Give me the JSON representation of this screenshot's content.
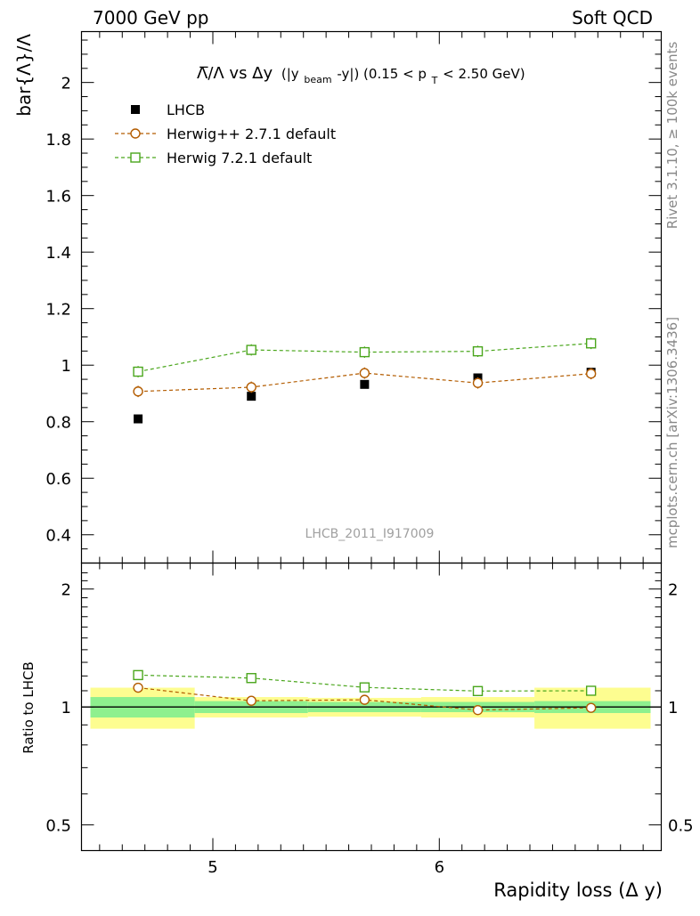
{
  "header": {
    "left": "7000 GeV pp",
    "right": "Soft QCD"
  },
  "side": {
    "rivet": "Rivet 3.1.10, ≥ 100k events",
    "mcplots": "mcplots.cern.ch [arXiv:1306.3436]"
  },
  "watermark": "LHCB_2011_I917009",
  "colors": {
    "data": "#000000",
    "herwigpp": "#b35c00",
    "herwig7": "#4aa61c",
    "band_inner": "#8ef08e",
    "band_outer": "#fdfd90"
  },
  "chart_data": [
    {
      "type": "scatter",
      "title": "Λ̅/Λ vs Δy (|y_beam-y|) (0.15 < p_T < 2.50 GeV)",
      "title_parts": {
        "main": "Λ̅/Λ vs Δy",
        "sub1": "(|y",
        "beam": "beam",
        "sub2": "-y|) (0.15 < p",
        "T": "T",
        "sub3": " < 2.50 GeV)"
      },
      "ylabel": "bar{Λ}/Λ",
      "xlim": [
        4.42,
        6.98
      ],
      "ylim": [
        0.3,
        2.18
      ],
      "yticks": [
        0.4,
        0.6,
        0.8,
        1,
        1.2,
        1.4,
        1.6,
        1.8,
        2
      ],
      "ytick_labels": [
        "0.4",
        "0.6",
        "0.8",
        "1",
        "1.2",
        "1.4",
        "1.6",
        "1.8",
        "2"
      ],
      "grid": false,
      "legend_position": "top-left",
      "series": [
        {
          "name": "LHCB",
          "marker": "filled-square",
          "x": [
            4.67,
            5.17,
            5.67,
            6.17,
            6.67
          ],
          "y": [
            0.81,
            0.89,
            0.932,
            0.955,
            0.975
          ]
        },
        {
          "name": "Herwig++ 2.7.1 default",
          "marker": "open-circle",
          "line": "dashed",
          "x": [
            4.67,
            5.17,
            5.67,
            6.17,
            6.67
          ],
          "y": [
            0.907,
            0.922,
            0.972,
            0.937,
            0.97
          ],
          "err": [
            0.02,
            0.02,
            0.02,
            0.02,
            0.02
          ]
        },
        {
          "name": "Herwig 7.2.1 default",
          "marker": "open-square",
          "line": "dashed",
          "x": [
            4.67,
            5.17,
            5.67,
            6.17,
            6.67
          ],
          "y": [
            0.977,
            1.054,
            1.046,
            1.049,
            1.077
          ],
          "err": [
            0.02,
            0.02,
            0.02,
            0.02,
            0.02
          ]
        }
      ]
    },
    {
      "type": "scatter",
      "ylabel": "Ratio to LHCB",
      "xlabel": "Rapidity loss (Δ y)",
      "xlim": [
        4.42,
        6.98
      ],
      "ylim": [
        0.43,
        2.33
      ],
      "yscale": "log",
      "yticks": [
        0.5,
        1,
        2
      ],
      "ytick_labels": [
        "0.5",
        "1",
        "2"
      ],
      "xticks": [
        5,
        6
      ],
      "xtick_labels": [
        "5",
        "6"
      ],
      "reference_line": 1,
      "bands": {
        "bin_edges": [
          4.42,
          4.92,
          5.42,
          5.92,
          6.42,
          6.98
        ],
        "inner": [
          0.06,
          0.035,
          0.03,
          0.03,
          0.035
        ],
        "outer": [
          0.12,
          0.06,
          0.055,
          0.06,
          0.12
        ]
      },
      "series": [
        {
          "name": "Herwig++ 2.7.1 default",
          "marker": "open-circle",
          "line": "dashed",
          "x": [
            4.67,
            5.17,
            5.67,
            6.17,
            6.67
          ],
          "y": [
            1.12,
            1.037,
            1.043,
            0.982,
            0.995
          ]
        },
        {
          "name": "Herwig 7.2.1 default",
          "marker": "open-square",
          "line": "dashed",
          "x": [
            4.67,
            5.17,
            5.67,
            6.17,
            6.67
          ],
          "y": [
            1.206,
            1.185,
            1.122,
            1.098,
            1.1
          ]
        }
      ]
    }
  ]
}
